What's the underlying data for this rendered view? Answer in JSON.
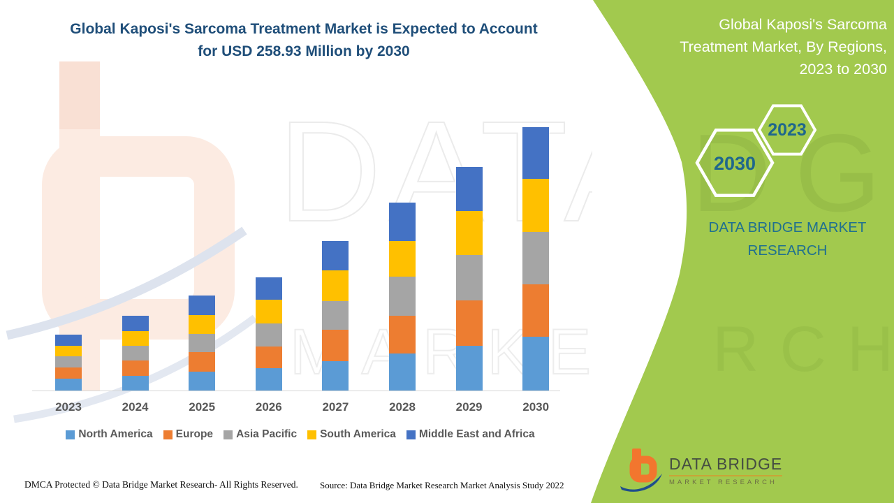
{
  "main_title": "Global Kaposi's Sarcoma Treatment Market is Expected to Account for USD 258.93 Million by 2030",
  "panel": {
    "title": "Global Kaposi's Sarcoma Treatment Market, By Regions, 2023 to 2030",
    "badge_year_right": "2023",
    "badge_year_left": "2030",
    "brand_line1": "DATA BRIDGE MARKET",
    "brand_line2": "RESEARCH",
    "background_color": "#a2c94e",
    "brand_text_color": "#20708f",
    "badge_text_color": "#1f678c"
  },
  "watermarks": {
    "text_top": "DATA BRI",
    "text_middle": "MARKET",
    "text_top_green": "DGE",
    "text_middle_green": "RCH"
  },
  "chart_data": {
    "type": "bar",
    "stacked": true,
    "title": "Global Kaposi's Sarcoma Treatment Market is Expected to Account for USD 258.93 Million by 2030",
    "unit": "USD Million",
    "categories": [
      "2023",
      "2024",
      "2025",
      "2026",
      "2027",
      "2028",
      "2029",
      "2030"
    ],
    "series": [
      {
        "name": "North America",
        "color": "#5b9bd5",
        "values": [
          11.5,
          14.5,
          18.5,
          22.0,
          29.0,
          36.5,
          44.0,
          52.9
        ]
      },
      {
        "name": "Europe",
        "color": "#ed7d31",
        "values": [
          11.5,
          15.0,
          19.0,
          21.5,
          31.0,
          37.0,
          44.5,
          51.5
        ]
      },
      {
        "name": "Asia Pacific",
        "color": "#a5a5a5",
        "values": [
          10.5,
          14.5,
          18.0,
          22.5,
          28.0,
          38.5,
          44.5,
          51.5
        ]
      },
      {
        "name": "South America",
        "color": "#ffc000",
        "values": [
          10.5,
          14.5,
          18.5,
          23.5,
          30.0,
          35.0,
          43.5,
          52.2
        ]
      },
      {
        "name": "Middle East and Africa",
        "color": "#4472c4",
        "values": [
          11.0,
          15.0,
          19.5,
          22.0,
          29.0,
          38.0,
          43.5,
          50.83
        ]
      }
    ],
    "totals": [
      55.0,
      73.5,
      93.5,
      111.5,
      147.0,
      185.0,
      220.0,
      258.93
    ],
    "ylim": [
      0,
      270
    ],
    "gridlines": false,
    "legend_position": "bottom",
    "axis_label_color": "#595959"
  },
  "footer": {
    "dmca": "DMCA Protected © Data Bridge Market Research- All Rights Reserved.",
    "source": "Source: Data Bridge Market Research Market Analysis Study 2022"
  },
  "logo": {
    "name": "DATA BRIDGE",
    "subtitle": "MARKET RESEARCH"
  }
}
